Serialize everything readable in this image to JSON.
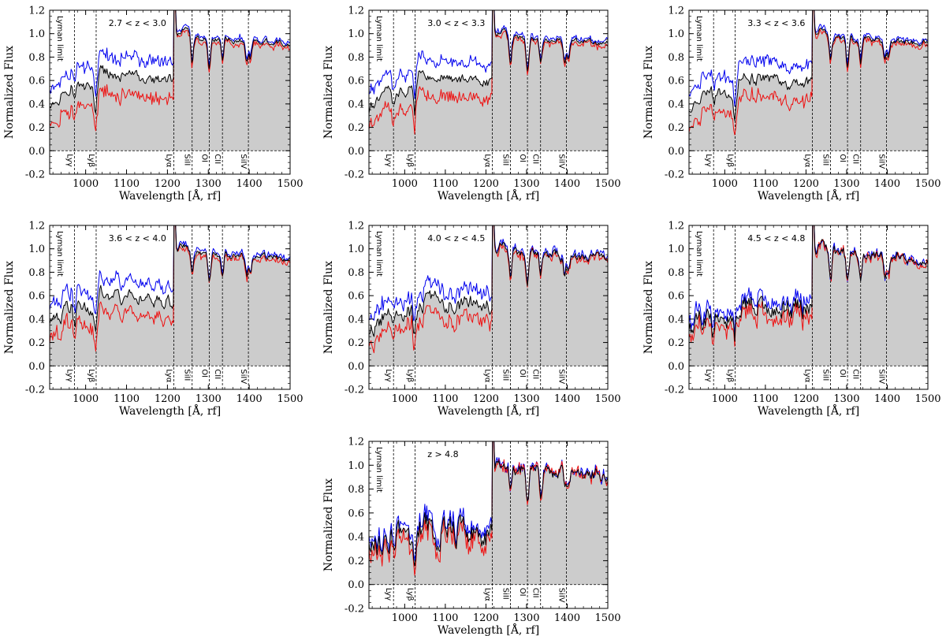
{
  "chart_data": {
    "type": "line",
    "xlabel": "Wavelength [Å, rf]",
    "ylabel": "Normalized Flux",
    "xlim": [
      912,
      1500
    ],
    "ylim": [
      -0.2,
      1.2
    ],
    "xticks": [
      1000,
      1100,
      1200,
      1300,
      1400,
      1500
    ],
    "yticks": [
      -0.2,
      0.0,
      0.2,
      0.4,
      0.6,
      0.8,
      1.0,
      1.2
    ],
    "grid": false,
    "colors": {
      "upper": "#0000ee",
      "median": "#000000",
      "lower": "#ee1111",
      "fill": "#cccccc"
    },
    "zero_line": 0.0,
    "reference_lines": [
      {
        "label": "Lyman limit",
        "x": 912
      },
      {
        "label": "Lyγ",
        "x": 972.5
      },
      {
        "label": "Lyβ",
        "x": 1025.7
      },
      {
        "label": "Lyα",
        "x": 1215.7
      },
      {
        "label": "SiII",
        "x": 1260.4
      },
      {
        "label": "OI",
        "x": 1302.2
      },
      {
        "label": "CII",
        "x": 1334.5
      },
      {
        "label": "SiIV",
        "x": 1398.0
      }
    ],
    "panels": [
      {
        "label": "2.7 < z < 3.0",
        "forest": 0.66,
        "noise": 0.025,
        "spread": 0.15,
        "lowlim_spike": true
      },
      {
        "label": "3.0 < z < 3.3",
        "forest": 0.64,
        "noise": 0.025,
        "spread": 0.14
      },
      {
        "label": "3.3 < z < 3.6",
        "forest": 0.62,
        "noise": 0.028,
        "spread": 0.14
      },
      {
        "label": "3.6 < z < 4.0",
        "forest": 0.6,
        "noise": 0.03,
        "spread": 0.13
      },
      {
        "label": "4.0 < z < 4.5",
        "forest": 0.56,
        "noise": 0.04,
        "spread": 0.11
      },
      {
        "label": "4.5 < z < 4.8",
        "forest": 0.52,
        "noise": 0.05,
        "spread": 0.06
      },
      {
        "label": "z > 4.8",
        "forest": 0.46,
        "noise": 0.06,
        "spread": 0.05
      }
    ]
  }
}
